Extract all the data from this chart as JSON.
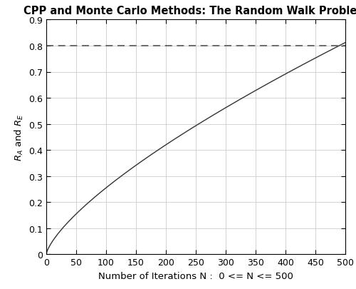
{
  "title": "CPP and Monte Carlo Methods: The Random Walk Problem",
  "xlabel": "Number of Iterations N :  0 <= N <= 500",
  "ylabel": "R_A and R_E",
  "xlim": [
    0,
    500
  ],
  "ylim": [
    0,
    0.9
  ],
  "xticks": [
    0,
    50,
    100,
    150,
    200,
    250,
    300,
    350,
    400,
    450,
    500
  ],
  "yticks": [
    0,
    0.1,
    0.2,
    0.3,
    0.4,
    0.5,
    0.6,
    0.7,
    0.8,
    0.9
  ],
  "hline_y": 0.8,
  "hline_color": "#555555",
  "curve_color": "#333333",
  "curve_power": 0.72,
  "curve_scale": 0.812,
  "N_max": 500,
  "background_color": "#ffffff",
  "grid_color": "#cccccc",
  "title_fontsize": 10.5,
  "label_fontsize": 9.5,
  "tick_fontsize": 9
}
